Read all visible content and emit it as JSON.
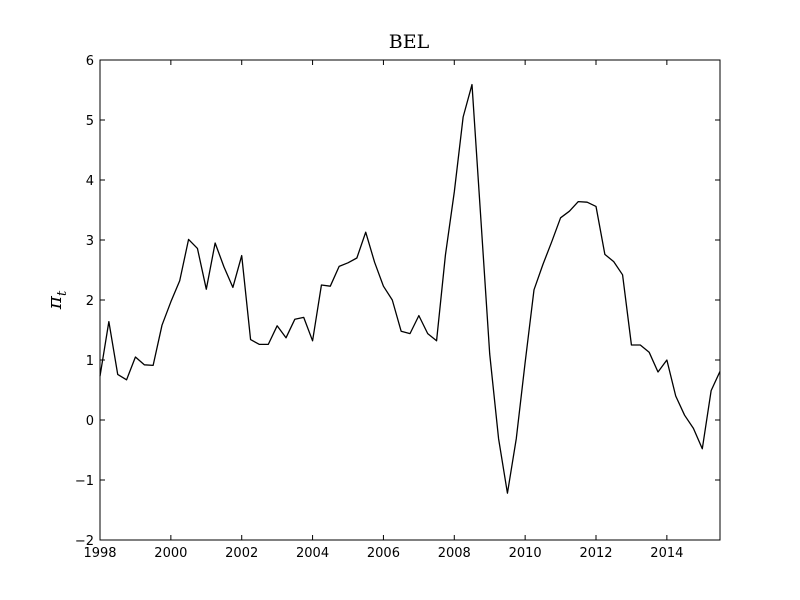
{
  "chart_data": {
    "type": "line",
    "title": "BEL",
    "xlabel": "",
    "ylabel": "π",
    "ylabel_subscript": "t",
    "xlim": [
      1998,
      2015.5
    ],
    "ylim": [
      -2,
      6
    ],
    "xticks": [
      1998,
      2000,
      2002,
      2004,
      2006,
      2008,
      2010,
      2012,
      2014
    ],
    "xtick_labels": [
      "1998",
      "2000",
      "2002",
      "2004",
      "2006",
      "2008",
      "2010",
      "2012",
      "2014"
    ],
    "yticks": [
      -2,
      -1,
      0,
      1,
      2,
      3,
      4,
      5,
      6
    ],
    "ytick_labels": [
      "−2",
      "−1",
      "0",
      "1",
      "2",
      "3",
      "4",
      "5",
      "6"
    ],
    "grid": false,
    "line_color": "#000000",
    "series": [
      {
        "x": [
          1998.0,
          1998.25,
          1998.5,
          1998.75,
          1999.0,
          1999.25,
          1999.5,
          1999.75,
          2000.0,
          2000.25,
          2000.5,
          2000.75,
          2001.0,
          2001.25,
          2001.5,
          2001.75,
          2002.0,
          2002.25,
          2002.5,
          2002.75,
          2003.0,
          2003.25,
          2003.5,
          2003.75,
          2004.0,
          2004.25,
          2004.5,
          2004.75,
          2005.0,
          2005.25,
          2005.5,
          2005.75,
          2006.0,
          2006.25,
          2006.5,
          2006.75,
          2007.0,
          2007.25,
          2007.5,
          2007.75,
          2008.0,
          2008.25,
          2008.5,
          2008.75,
          2009.0,
          2009.25,
          2009.5,
          2009.75,
          2010.0,
          2010.25,
          2010.5,
          2010.75,
          2011.0,
          2011.25,
          2011.5,
          2011.75,
          2012.0,
          2012.25,
          2012.5,
          2012.75,
          2013.0,
          2013.25,
          2013.5,
          2013.75,
          2014.0,
          2014.25,
          2014.5,
          2014.75,
          2015.0,
          2015.25,
          2015.5
        ],
        "values": [
          0.73,
          1.64,
          0.76,
          0.67,
          1.05,
          0.92,
          0.91,
          1.58,
          1.97,
          2.32,
          3.01,
          2.86,
          2.18,
          2.95,
          2.55,
          2.21,
          2.74,
          1.34,
          1.26,
          1.26,
          1.57,
          1.37,
          1.68,
          1.71,
          1.32,
          2.25,
          2.23,
          2.56,
          2.62,
          2.7,
          3.13,
          2.63,
          2.23,
          2.0,
          1.48,
          1.44,
          1.74,
          1.44,
          1.32,
          2.75,
          3.8,
          5.05,
          5.59,
          3.35,
          1.1,
          -0.31,
          -1.22,
          -0.31,
          0.96,
          2.17,
          2.59,
          2.97,
          3.37,
          3.48,
          3.64,
          3.63,
          3.56,
          2.76,
          2.64,
          2.42,
          1.25,
          1.25,
          1.13,
          0.8,
          1.0,
          0.4,
          0.08,
          -0.14,
          -0.48,
          0.49,
          0.81
        ]
      }
    ]
  }
}
